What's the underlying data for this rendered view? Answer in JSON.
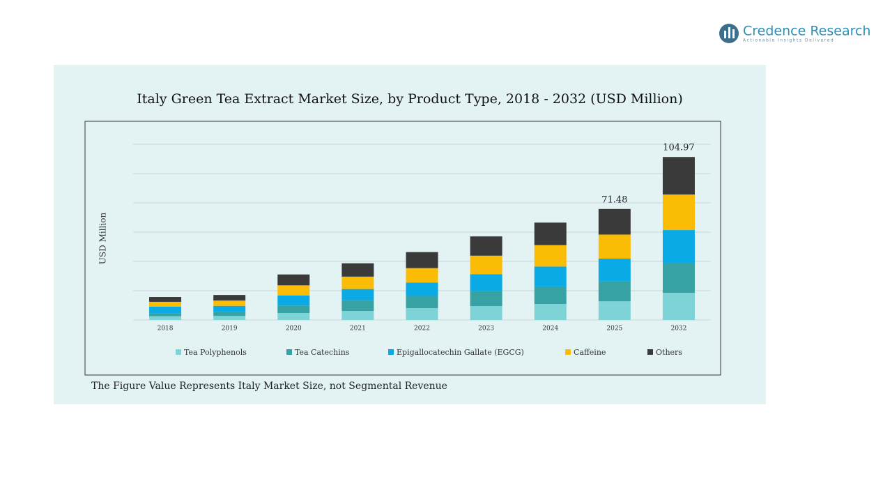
{
  "brand": {
    "name": "Credence Research",
    "tagline": "Actionable Insights Delivered"
  },
  "chart_data": {
    "type": "bar",
    "stacked": true,
    "title": "Italy Green Tea Extract Market Size, by Product Type, 2018 - 2032 (USD Million)",
    "y_label": "USD Million",
    "note": "The Figure Value Represents Italy Market Size, not Segmental Revenue",
    "categories": [
      "2018",
      "2019",
      "2020",
      "2021",
      "2022",
      "2023",
      "2024",
      "2025",
      "2032"
    ],
    "series": [
      {
        "name": "Tea Polyphenols",
        "color": "#7dd3d6",
        "values": [
          2.4,
          2.6,
          4.5,
          5.8,
          7.6,
          8.9,
          10.3,
          12.0,
          17.5
        ]
      },
      {
        "name": "Tea Catechins",
        "color": "#36a2a3",
        "values": [
          2.0,
          2.4,
          4.8,
          6.9,
          7.9,
          9.9,
          11.3,
          13.1,
          19.3
        ]
      },
      {
        "name": "Epigallocatechin Gallate (EGCG)",
        "color": "#0aaae6",
        "values": [
          4.2,
          4.1,
          6.5,
          7.2,
          8.6,
          10.7,
          12.8,
          14.4,
          21.1
        ]
      },
      {
        "name": "Caffeine",
        "color": "#fbbc05",
        "values": [
          3.1,
          3.4,
          6.5,
          8.0,
          9.3,
          11.9,
          13.8,
          15.5,
          22.9
        ]
      },
      {
        "name": "Others",
        "color": "#3a3a3a",
        "values": [
          3.1,
          3.6,
          7.0,
          8.6,
          10.3,
          12.4,
          14.5,
          16.48,
          24.17
        ]
      }
    ],
    "total_labels": [
      {
        "category": "2025",
        "value": 71.48
      },
      {
        "category": "2032",
        "value": 104.97
      }
    ],
    "ylim": [
      0,
      110
    ],
    "grid": true,
    "legend": "bottom"
  }
}
